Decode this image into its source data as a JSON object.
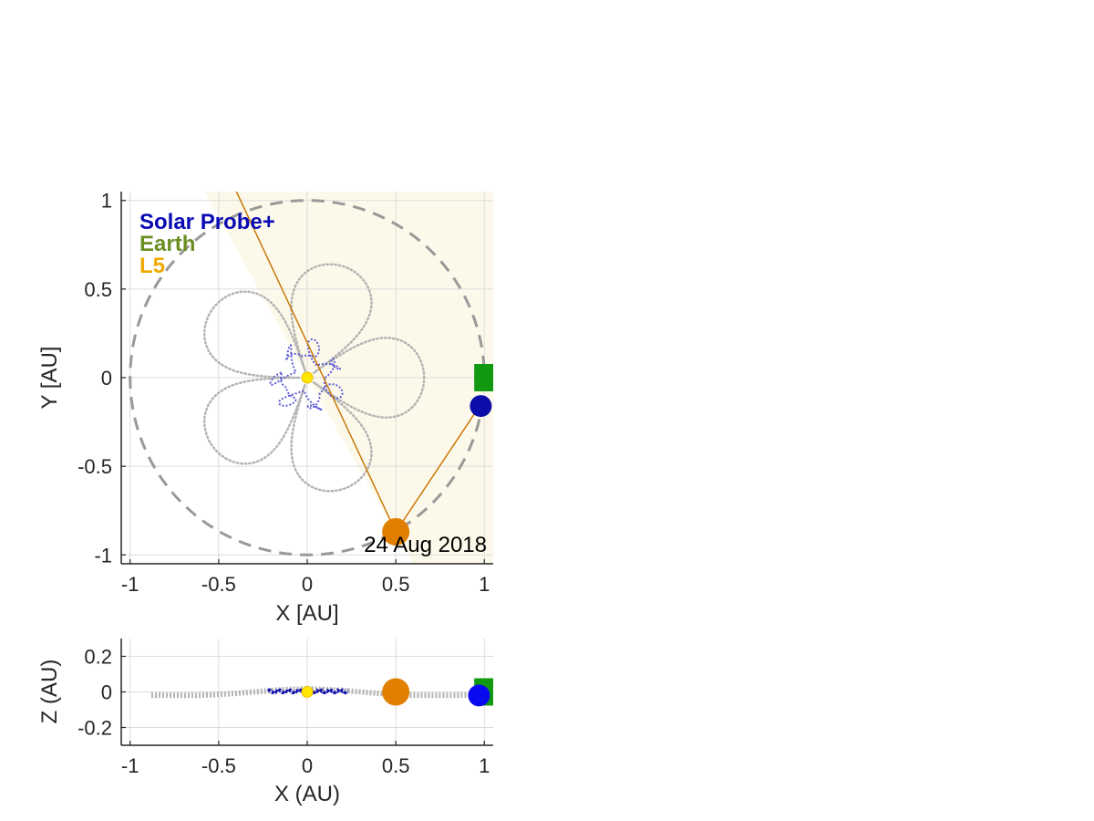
{
  "chart_data": [
    {
      "type": "scatter",
      "view": "top",
      "xlabel": "X [AU]",
      "ylabel": "Y [AU]",
      "xlim": [
        -1.05,
        1.05
      ],
      "ylim": [
        -1.05,
        1.05
      ],
      "xticks": [
        -1,
        -0.5,
        0,
        0.5,
        1
      ],
      "yticks": [
        -1,
        -0.5,
        0,
        0.5,
        1
      ],
      "xtick_labels": [
        "-1",
        "-0.5",
        "0",
        "0.5",
        "1"
      ],
      "ytick_labels": [
        "-1",
        "-0.5",
        "0",
        "0.5",
        "1"
      ],
      "grid": true,
      "date_label": "24 Aug 2018",
      "legend": {
        "placement": "top-left",
        "entries": [
          {
            "label": "Solar Probe+",
            "color": "#0a0ab4"
          },
          {
            "label": "Earth",
            "color": "#6b8e23"
          },
          {
            "label": "L5",
            "color": "#f0a800"
          }
        ]
      },
      "earth_orbit": {
        "radius": 1.0,
        "style": "dashed",
        "color": "#999999"
      },
      "shaded_sector": {
        "angle_from_deg": -60.3,
        "angle_to_deg": 118.8,
        "color": "#fdf9ea"
      },
      "sightline": {
        "points": [
          [
            -0.4,
            1.05
          ],
          [
            0.5,
            -0.87
          ],
          [
            0.98,
            -0.15
          ]
        ],
        "color": "#c8780a"
      },
      "markers": [
        {
          "name": "Sun",
          "x": 0.0,
          "y": 0.0,
          "color": "#ffe600",
          "shape": "circle",
          "size": "small"
        },
        {
          "name": "Earth",
          "x": 1.02,
          "y": 0.0,
          "color": "#119911",
          "shape": "square",
          "size": "large"
        },
        {
          "name": "Solar Probe+",
          "x": 0.98,
          "y": -0.16,
          "color": "#0c0ca8",
          "shape": "circle",
          "size": "medium"
        },
        {
          "name": "L5",
          "x": 0.5,
          "y": -0.87,
          "color": "#e07f00",
          "shape": "circle",
          "size": "large"
        }
      ],
      "series": [
        {
          "kind": "spacecraft-orbit-track",
          "color": "#5c5cd6",
          "style": "dotted"
        },
        {
          "kind": "l5-relative-track",
          "color": "#b4b4b4",
          "style": "dotted"
        }
      ]
    },
    {
      "type": "scatter",
      "view": "side",
      "xlabel": "X (AU)",
      "ylabel": "Z (AU)",
      "xlim": [
        -1.05,
        1.05
      ],
      "ylim": [
        -0.3,
        0.3
      ],
      "xticks": [
        -1,
        -0.5,
        0,
        0.5,
        1
      ],
      "yticks": [
        -0.2,
        0,
        0.2
      ],
      "xtick_labels": [
        "-1",
        "-0.5",
        "0",
        "0.5",
        "1"
      ],
      "ytick_labels": [
        "-0.2",
        "0",
        "0.2"
      ],
      "grid": true,
      "markers": [
        {
          "name": "Sun",
          "x": 0.0,
          "y": 0.0,
          "color": "#ffe600",
          "shape": "circle",
          "size": "small"
        },
        {
          "name": "Earth",
          "x": 1.02,
          "y": 0.0,
          "color": "#119911",
          "shape": "square",
          "size": "large"
        },
        {
          "name": "Solar Probe+",
          "x": 0.97,
          "y": -0.02,
          "color": "#0a0af0",
          "shape": "circle",
          "size": "medium"
        },
        {
          "name": "L5",
          "x": 0.5,
          "y": 0.0,
          "color": "#e07f00",
          "shape": "circle",
          "size": "large"
        }
      ]
    }
  ]
}
